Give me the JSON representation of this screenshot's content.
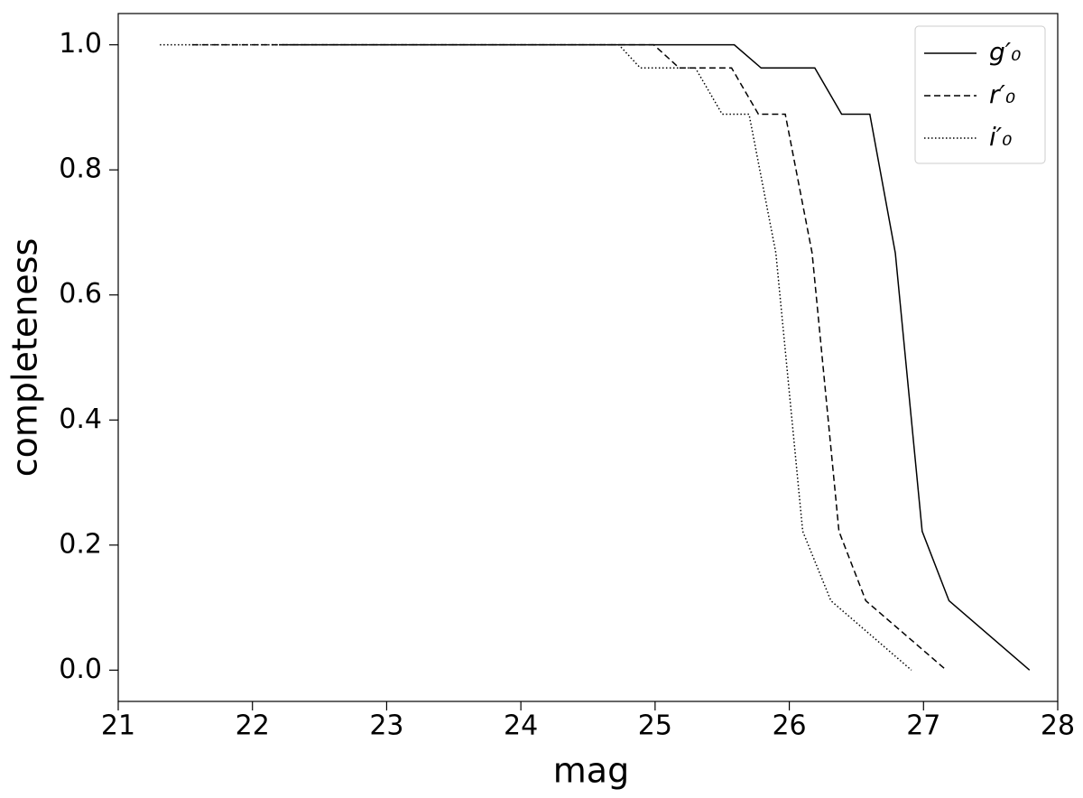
{
  "chart_data": {
    "type": "line",
    "xlabel": "mag",
    "ylabel": "completeness",
    "xlim": [
      21,
      28
    ],
    "ylim": [
      -0.05,
      1.05
    ],
    "xticks": [
      21,
      22,
      23,
      24,
      25,
      26,
      27,
      28
    ],
    "yticks": [
      {
        "value": 0,
        "label": "0.0"
      },
      0.2,
      0.4,
      0.6,
      0.8,
      {
        "value": 1,
        "label": "1.0"
      }
    ],
    "legend": "upper right",
    "series": [
      {
        "name": "g′₀",
        "color": "#000000",
        "linestyle": "solid",
        "x": [
          22.2,
          25.59,
          25.79,
          26.19,
          26.39,
          26.6,
          26.79,
          26.99,
          27.19,
          27.79
        ],
        "values": [
          1.0,
          1.0,
          0.963,
          0.963,
          0.889,
          0.889,
          0.667,
          0.222,
          0.111,
          0.0
        ]
      },
      {
        "name": "r′₀",
        "color": "#000000",
        "linestyle": "dashed",
        "x": [
          21.55,
          24.99,
          25.18,
          25.57,
          25.77,
          25.97,
          26.17,
          26.37,
          26.57,
          27.17
        ],
        "values": [
          1.0,
          1.0,
          0.963,
          0.963,
          0.889,
          0.889,
          0.667,
          0.222,
          0.111,
          0.0
        ]
      },
      {
        "name": "i′₀",
        "color": "#000000",
        "linestyle": "dotted",
        "x": [
          21.31,
          24.73,
          24.89,
          25.3,
          25.5,
          25.7,
          25.9,
          26.1,
          26.31,
          26.91
        ],
        "values": [
          1.0,
          1.0,
          0.963,
          0.963,
          0.889,
          0.889,
          0.667,
          0.222,
          0.111,
          0.0
        ]
      }
    ]
  }
}
